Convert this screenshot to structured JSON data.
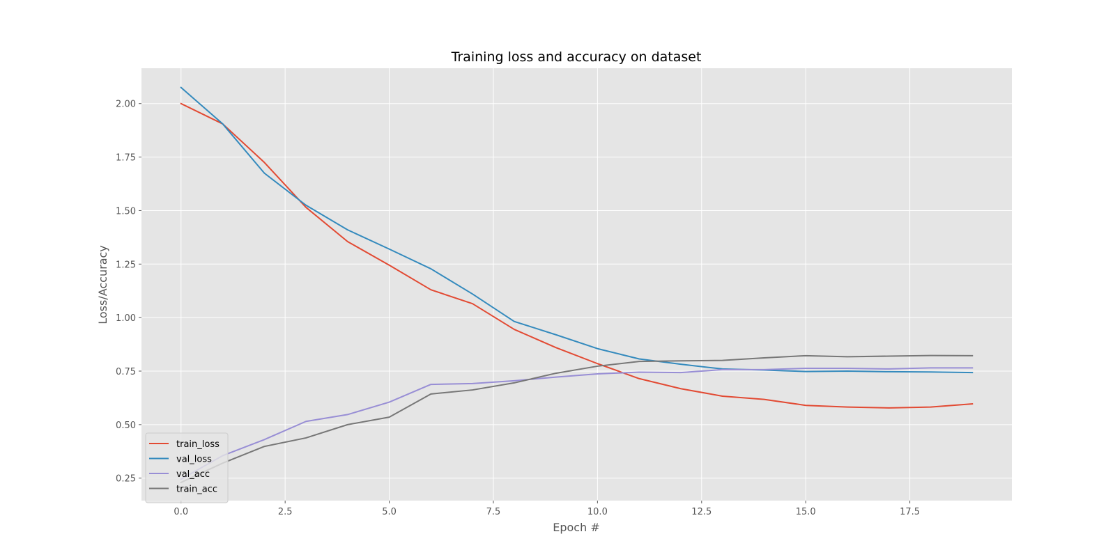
{
  "chart_data": {
    "type": "line",
    "title": "Training loss and accuracy on dataset",
    "xlabel": "Epoch #",
    "ylabel": "Loss/Accuracy",
    "xlim": [
      -0.95,
      19.95
    ],
    "ylim": [
      0.145,
      2.165
    ],
    "xticks": [
      0.0,
      2.5,
      5.0,
      7.5,
      10.0,
      12.5,
      15.0,
      17.5
    ],
    "xtick_labels": [
      "0.0",
      "2.5",
      "5.0",
      "7.5",
      "10.0",
      "12.5",
      "15.0",
      "17.5"
    ],
    "yticks": [
      0.25,
      0.5,
      0.75,
      1.0,
      1.25,
      1.5,
      1.75,
      2.0
    ],
    "ytick_labels": [
      "0.25",
      "0.50",
      "0.75",
      "1.00",
      "1.25",
      "1.50",
      "1.75",
      "2.00"
    ],
    "grid": true,
    "legend_position": "lower-left",
    "x": [
      0,
      1,
      2,
      3,
      4,
      5,
      6,
      7,
      8,
      9,
      10,
      11,
      12,
      13,
      14,
      15,
      16,
      17,
      18,
      19
    ],
    "series": [
      {
        "name": "train_loss",
        "color": "#E24A33",
        "values": [
          2.0,
          1.905,
          1.725,
          1.515,
          1.355,
          1.245,
          1.13,
          1.065,
          0.945,
          0.86,
          0.785,
          0.715,
          0.668,
          0.633,
          0.618,
          0.59,
          0.582,
          0.578,
          0.582,
          0.597
        ]
      },
      {
        "name": "val_loss",
        "color": "#348ABD",
        "values": [
          2.075,
          1.905,
          1.675,
          1.525,
          1.41,
          1.32,
          1.228,
          1.11,
          0.982,
          0.92,
          0.855,
          0.807,
          0.782,
          0.76,
          0.755,
          0.748,
          0.75,
          0.747,
          0.746,
          0.743
        ]
      },
      {
        "name": "val_acc",
        "color": "#988ED5",
        "values": [
          0.245,
          0.355,
          0.43,
          0.515,
          0.547,
          0.605,
          0.688,
          0.692,
          0.705,
          0.722,
          0.737,
          0.745,
          0.743,
          0.757,
          0.757,
          0.763,
          0.763,
          0.76,
          0.765,
          0.765
        ]
      },
      {
        "name": "train_acc",
        "color": "#777777",
        "values": [
          0.23,
          0.32,
          0.398,
          0.438,
          0.5,
          0.535,
          0.643,
          0.662,
          0.695,
          0.74,
          0.773,
          0.795,
          0.798,
          0.8,
          0.812,
          0.822,
          0.817,
          0.82,
          0.823,
          0.822
        ]
      }
    ]
  }
}
